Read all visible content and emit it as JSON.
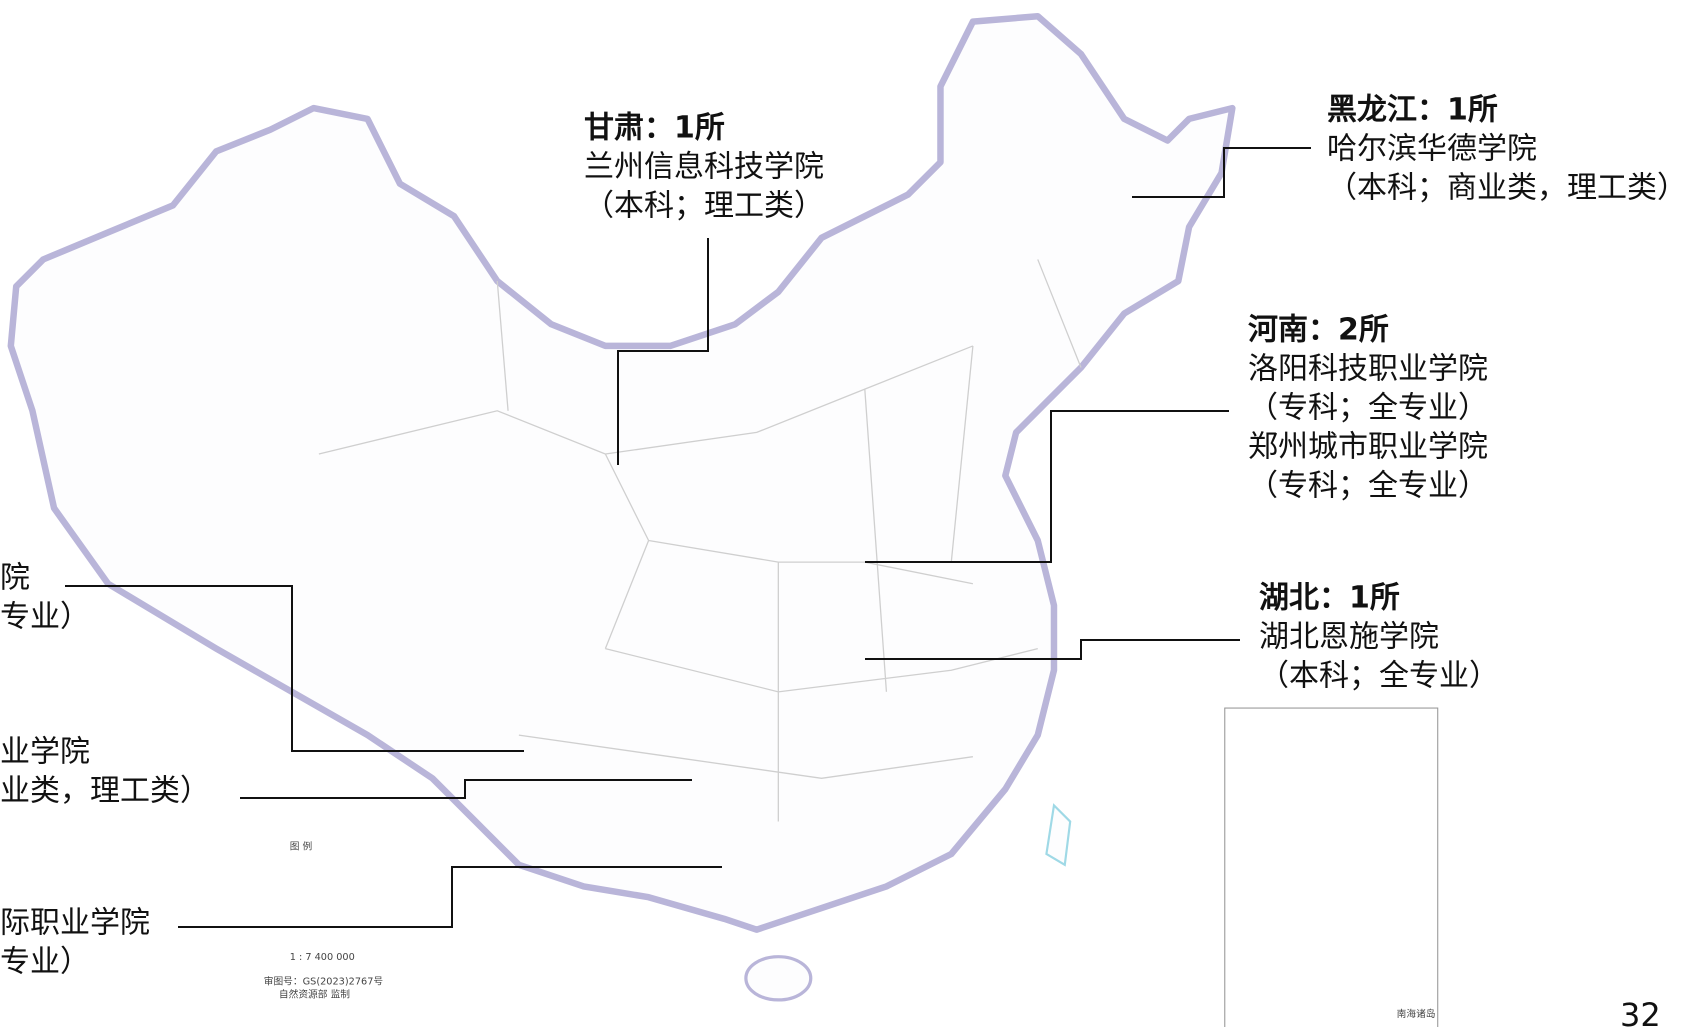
{
  "callouts": [
    {
      "title": "甘肃：1所",
      "lines": [
        "兰州信息科技学院",
        "（本科；理工类）"
      ]
    },
    {
      "title": "黑龙江：1所",
      "lines": [
        "哈尔滨华德学院",
        "（本科；商业类，理工类）"
      ]
    },
    {
      "title": "河南：2所",
      "lines": [
        "洛阳科技职业学院",
        "（专科；全专业）",
        "郑州城市职业学院",
        "（专科；全专业）"
      ]
    },
    {
      "title": "湖北：1所",
      "lines": [
        "湖北恩施学院",
        "（本科；全专业）"
      ]
    }
  ],
  "left_fragments": [
    [
      "院",
      "专业）"
    ],
    [
      "业学院",
      "业类，理工类）"
    ],
    [
      "际职业学院",
      "专业）"
    ]
  ],
  "legend": {
    "title": "图 例",
    "scale": "1 : 7 400 000",
    "approval": "审图号：GS(2023)2767号",
    "issuer": "自然资源部 监制"
  },
  "inset": "南海诸岛",
  "page_number": "32"
}
